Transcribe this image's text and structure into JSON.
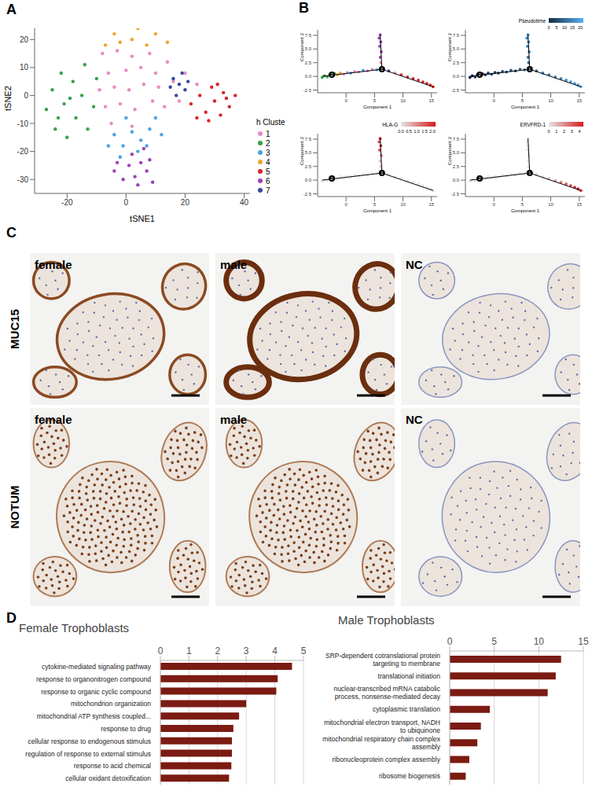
{
  "panel_labels": [
    "A",
    "B",
    "C",
    "D"
  ],
  "chart_data": [
    {
      "type": "scatter",
      "x_label": "tSNE1",
      "y_label": "tSNE2",
      "legend_title": "h Cluste",
      "legend": "right",
      "grid": false,
      "xlim": [
        -31,
        42
      ],
      "ylim": [
        -35,
        24
      ],
      "xticks": [
        -20,
        0,
        20,
        40
      ],
      "yticks": [
        -30,
        -20,
        -10,
        0,
        10,
        20
      ],
      "series": [
        {
          "name": "1",
          "color": "#e78ac3",
          "values": [
            [
              -8,
              15
            ],
            [
              -3,
              16
            ],
            [
              2,
              14
            ],
            [
              8,
              15
            ],
            [
              -6,
              8
            ],
            [
              0,
              9
            ],
            [
              5,
              10
            ],
            [
              10,
              8
            ],
            [
              14,
              12
            ],
            [
              -9,
              2
            ],
            [
              -4,
              3
            ],
            [
              1,
              2
            ],
            [
              6,
              4
            ],
            [
              11,
              3
            ],
            [
              16,
              5
            ],
            [
              20,
              8
            ],
            [
              24,
              4
            ],
            [
              -7,
              -4
            ],
            [
              -2,
              -3
            ],
            [
              3,
              -5
            ],
            [
              9,
              -2
            ],
            [
              13,
              -4
            ],
            [
              -5,
              -10
            ],
            [
              2,
              -11
            ],
            [
              18,
              -2
            ]
          ]
        },
        {
          "name": "2",
          "color": "#3aa14a",
          "values": [
            [
              -27,
              -5
            ],
            [
              -25,
              2
            ],
            [
              -24,
              -12
            ],
            [
              -22,
              8
            ],
            [
              -21,
              -3
            ],
            [
              -20,
              -15
            ],
            [
              -18,
              5
            ],
            [
              -17,
              -8
            ],
            [
              -15,
              0
            ],
            [
              -14,
              11
            ],
            [
              -13,
              -12
            ],
            [
              -11,
              -4
            ],
            [
              -10,
              6
            ],
            [
              -23,
              -8
            ],
            [
              -19,
              -1
            ]
          ]
        },
        {
          "name": "3",
          "color": "#4aa3df",
          "values": [
            [
              -4,
              -14
            ],
            [
              -1,
              -18
            ],
            [
              2,
              -13
            ],
            [
              5,
              -16
            ],
            [
              8,
              -12
            ],
            [
              10,
              -8
            ],
            [
              -2,
              -22
            ],
            [
              4,
              -20
            ],
            [
              7,
              -18
            ],
            [
              0,
              -8
            ],
            [
              12,
              -14
            ],
            [
              -6,
              -18
            ]
          ]
        },
        {
          "name": "4",
          "color": "#f0a32a",
          "values": [
            [
              -7,
              18
            ],
            [
              -4,
              22
            ],
            [
              -1,
              26
            ],
            [
              2,
              20
            ],
            [
              4,
              24
            ],
            [
              7,
              18
            ],
            [
              10,
              22
            ],
            [
              12,
              26
            ],
            [
              14,
              19
            ],
            [
              -2,
              19
            ],
            [
              6,
              26
            ]
          ]
        },
        {
          "name": "5",
          "color": "#d7262b",
          "values": [
            [
              22,
              -3
            ],
            [
              25,
              0
            ],
            [
              27,
              -6
            ],
            [
              29,
              3
            ],
            [
              30,
              -2
            ],
            [
              32,
              -7
            ],
            [
              33,
              1
            ],
            [
              35,
              -4
            ],
            [
              37,
              0
            ],
            [
              28,
              -9
            ],
            [
              24,
              -8
            ],
            [
              31,
              4
            ],
            [
              34,
              -1
            ]
          ]
        },
        {
          "name": "6",
          "color": "#9b42b5",
          "values": [
            [
              -4,
              -27
            ],
            [
              -1,
              -30
            ],
            [
              1,
              -25
            ],
            [
              3,
              -29
            ],
            [
              5,
              -24
            ],
            [
              7,
              -27
            ],
            [
              9,
              -31
            ],
            [
              -3,
              -24
            ],
            [
              4,
              -32
            ],
            [
              8,
              -23
            ],
            [
              6,
              -19
            ],
            [
              2,
              -21
            ]
          ]
        },
        {
          "name": "7",
          "color": "#3b479d",
          "values": [
            [
              15,
              3
            ],
            [
              16,
              6
            ],
            [
              18,
              4
            ],
            [
              19,
              8
            ],
            [
              20,
              2
            ],
            [
              17,
              0
            ],
            [
              21,
              5
            ]
          ]
        }
      ]
    },
    {
      "type": "scatter",
      "x_label": "Component 1",
      "y_label": "Component 2",
      "grid": false,
      "xlim": [
        -5,
        16
      ],
      "ylim": [
        -3,
        8.5
      ],
      "xticks": [
        0,
        5,
        10,
        15
      ],
      "yticks": [
        -2.5,
        {
          "value": 0,
          "label": "0.0"
        },
        2.5,
        {
          "value": 5,
          "label": "5.0"
        },
        7.5
      ],
      "x": [
        -4.2,
        -3.8,
        -3.3,
        -2.9,
        -2.4,
        -2.0,
        -1.5,
        -1.0,
        -0.4,
        0.2,
        0.8,
        1.5,
        2.2,
        3.0,
        3.8,
        4.6,
        5.4,
        6.1,
        6.0,
        6.2,
        5.9,
        6.1,
        5.8,
        6.0,
        7.5,
        8.6,
        9.7,
        10.8,
        11.8,
        12.7,
        13.5,
        14.2,
        14.8,
        15.3
      ],
      "y": [
        -0.2,
        0.1,
        -0.1,
        0.3,
        0.2,
        0.5,
        0.3,
        0.6,
        0.4,
        0.7,
        0.6,
        0.9,
        0.8,
        1.1,
        1.0,
        1.3,
        1.2,
        2.5,
        3.5,
        4.5,
        5.5,
        6.3,
        7.0,
        7.6,
        1.0,
        0.6,
        0.3,
        -0.1,
        -0.4,
        -0.7,
        -1.0,
        -1.3,
        -1.6,
        -1.9
      ],
      "cluster": [
        2,
        2,
        2,
        2,
        4,
        2,
        4,
        4,
        1,
        1,
        3,
        1,
        1,
        3,
        1,
        1,
        3,
        1,
        6,
        6,
        6,
        6,
        6,
        6,
        7,
        1,
        5,
        5,
        5,
        5,
        5,
        5,
        5,
        5
      ],
      "color_bars": [
        {
          "title": "Pseudotime",
          "colors": [
            "#132b43",
            "#56b1f7"
          ],
          "range": [
            0,
            22
          ],
          "ticks": [
            0,
            5,
            10,
            15,
            20
          ],
          "values": [
            0.3,
            0.8,
            1.3,
            1.8,
            2.3,
            2.8,
            3.3,
            3.8,
            4.4,
            5.0,
            5.6,
            6.3,
            7.0,
            7.7,
            8.4,
            9.1,
            9.8,
            11.0,
            12.0,
            13.0,
            14.0,
            14.8,
            15.5,
            16.0,
            11.5,
            12.5,
            13.5,
            14.5,
            15.5,
            16.5,
            17.5,
            18.5,
            19.5,
            21.0
          ]
        },
        {
          "title": "HLA-G",
          "colors": [
            "#e6e6e6",
            "#d7191c"
          ],
          "range": [
            0,
            2.2
          ],
          "ticks": [
            {
              "value": 0,
              "label": "0.0"
            },
            0.5,
            {
              "value": 1,
              "label": "1.0"
            },
            1.5,
            {
              "value": 2,
              "label": "2.0"
            }
          ],
          "values": [
            0,
            0,
            0,
            0,
            0,
            0,
            0,
            0,
            0,
            0,
            0,
            0,
            0,
            0,
            0,
            0,
            0,
            0.2,
            0.5,
            1.2,
            1.8,
            2.0,
            1.6,
            2.1,
            0,
            0,
            0,
            0,
            0,
            0,
            0,
            0,
            0,
            0
          ]
        },
        {
          "title": "ERVFRD-1",
          "colors": [
            "#e6e6e6",
            "#d7191c"
          ],
          "range": [
            0,
            4.5
          ],
          "ticks": [
            0,
            1,
            2,
            3,
            4
          ],
          "values": [
            0,
            0,
            0,
            0,
            0,
            0,
            0,
            0,
            0,
            0,
            0,
            0,
            0.2,
            0,
            0,
            0,
            0,
            0,
            0,
            0,
            0,
            0,
            0,
            0,
            0.5,
            0.3,
            1.0,
            1.8,
            2.4,
            3.0,
            3.6,
            4.0,
            4.3,
            3.8
          ]
        }
      ],
      "tree": [
        [
          [
            -4.2,
            0
          ],
          [
            6.3,
            1.3
          ]
        ],
        [
          [
            6.3,
            1.3
          ],
          [
            6.0,
            7.6
          ]
        ],
        [
          [
            6.3,
            1.3
          ],
          [
            15.3,
            -1.9
          ]
        ]
      ],
      "branch_points": [
        {
          "x": 6.3,
          "y": 1.3,
          "label": "1"
        },
        {
          "x": -2.5,
          "y": 0.3,
          "label": "2"
        }
      ]
    },
    {
      "type": "bar",
      "orientation": "horizontal",
      "title": "Female Trophoblasts",
      "grid": true,
      "color": "#7b1b12",
      "xlim": [
        0,
        5
      ],
      "xticks": [
        0,
        1,
        2,
        3,
        4,
        5
      ],
      "categories": [
        "cytokine-mediated signaling pathway",
        "response to organonitrogen compound",
        "response to organic cyclic compound",
        "mitochondrion organization",
        "mitochondrial ATP synthesis coupled...",
        "response to drug",
        "cellular response to endogenous stimulus",
        "regulation of response to external stimulus",
        "response to acid chemical",
        "cellular oxidant detoxification"
      ],
      "values": [
        4.6,
        4.1,
        4.05,
        3.0,
        2.75,
        2.55,
        2.5,
        2.5,
        2.48,
        2.4
      ]
    },
    {
      "type": "bar",
      "orientation": "horizontal",
      "title": "Male Trophoblasts",
      "grid": true,
      "color": "#7b1b12",
      "xlim": [
        0,
        15
      ],
      "xticks": [
        0,
        5,
        10,
        15
      ],
      "categories": [
        "SRP-dependent cotranslational protein targeting to membrane",
        "translational initiation",
        "nuclear-transcribed mRNA catabolic process, nonsense-mediated decay",
        "cytoplasmic translation",
        "mitochondrial electron transport, NADH to ubiquinone",
        "mitochondrial respiratory chain complex assembly",
        "ribonucleoprotein complex assembly",
        "ribosome biogenesis"
      ],
      "values": [
        12.5,
        11.9,
        11.0,
        4.5,
        3.5,
        3.1,
        2.2,
        1.8
      ]
    }
  ],
  "ihc": {
    "row_labels": [
      "MUC15",
      "NOTUM"
    ],
    "column_labels": [
      "female",
      "male",
      "NC"
    ]
  }
}
